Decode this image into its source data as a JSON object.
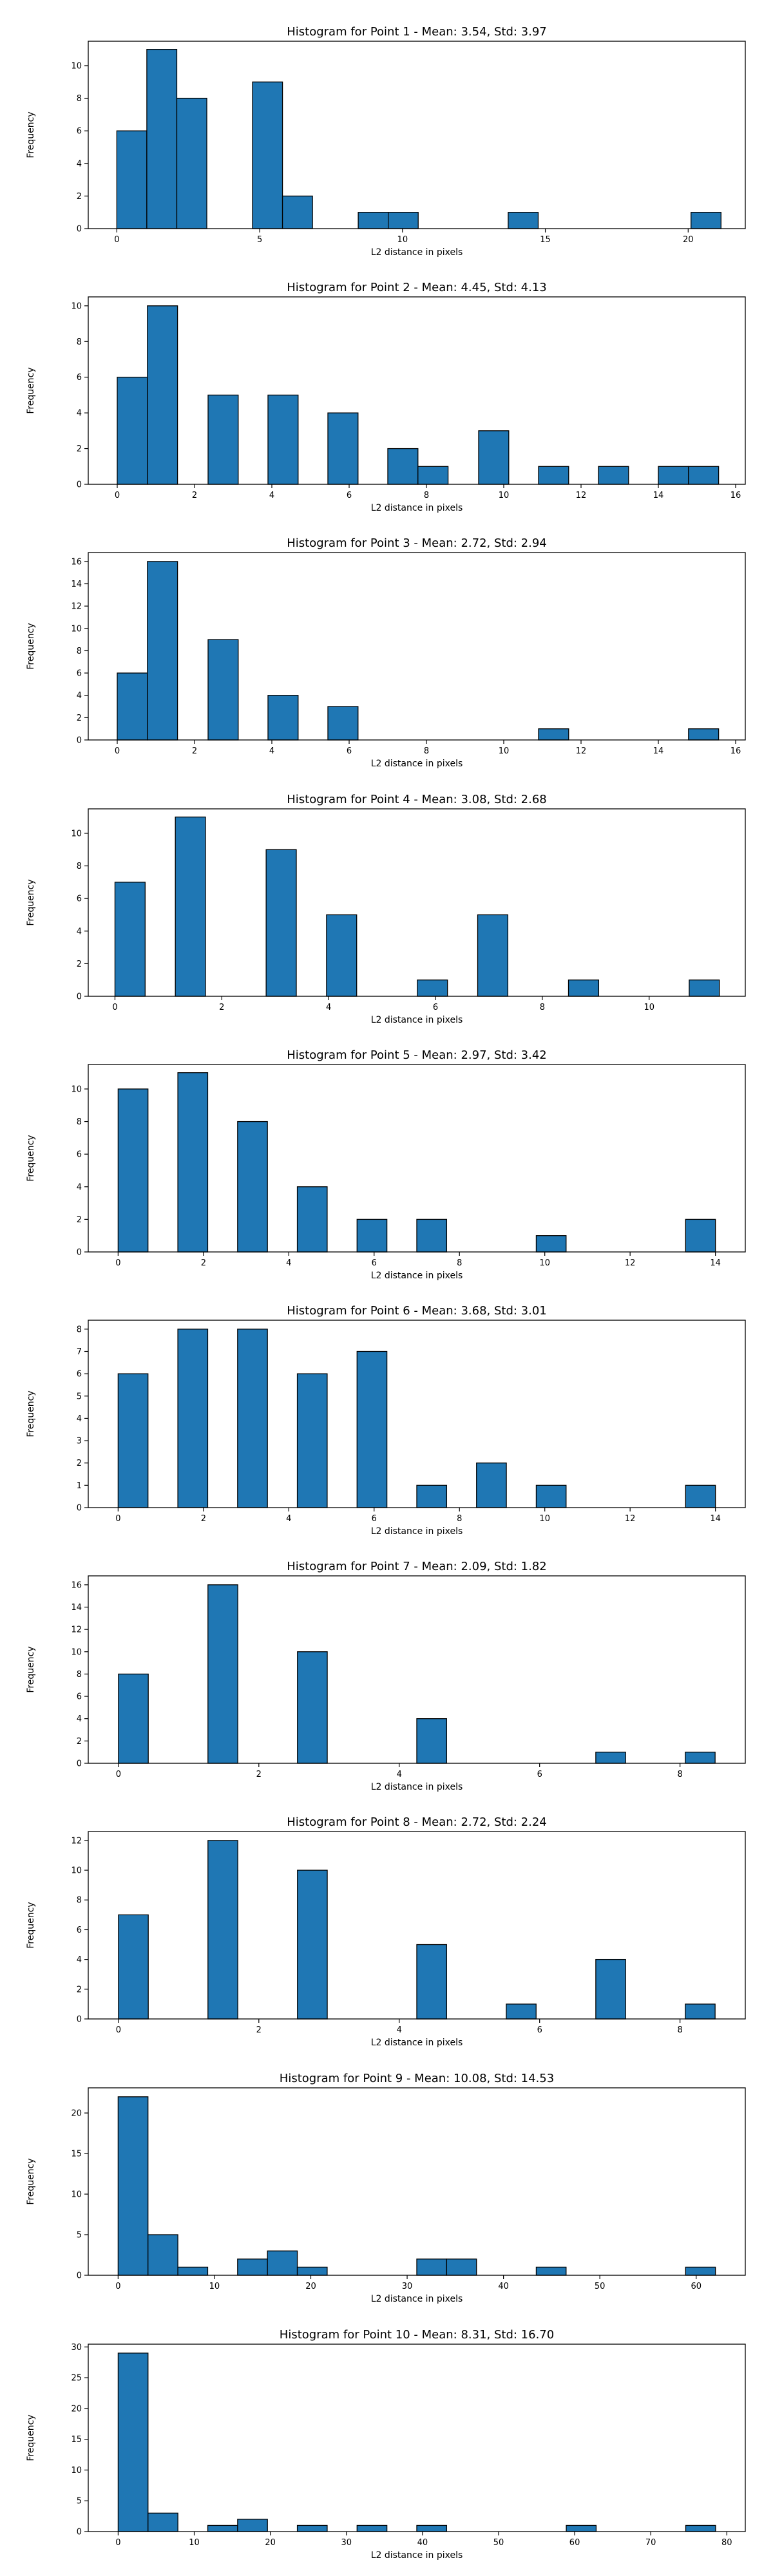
{
  "chart_data": [
    {
      "type": "bar",
      "title": "Histogram for Point 1 - Mean: 3.54, Std: 3.97",
      "xlabel": "L2 distance in pixels",
      "ylabel": "Frequency",
      "xlim": [
        -1,
        22
      ],
      "ylim": [
        0,
        11.5
      ],
      "xticks": [
        "0",
        "5",
        "10",
        "15",
        "20"
      ],
      "yticks": [
        "0",
        "2",
        "4",
        "6",
        "8",
        "10"
      ],
      "bin_width": 1.05,
      "bins": [
        {
          "x": 0,
          "count": 6
        },
        {
          "x": 1.05,
          "count": 11
        },
        {
          "x": 2.1,
          "count": 8
        },
        {
          "x": 4.75,
          "count": 9
        },
        {
          "x": 5.8,
          "count": 2
        },
        {
          "x": 8.45,
          "count": 1
        },
        {
          "x": 9.5,
          "count": 1
        },
        {
          "x": 13.7,
          "count": 1
        },
        {
          "x": 20.1,
          "count": 1
        }
      ]
    },
    {
      "type": "bar",
      "title": "Histogram for Point 2 - Mean: 4.45, Std: 4.13",
      "xlabel": "L2 distance in pixels",
      "ylabel": "Frequency",
      "xlim": [
        -0.75,
        16.25
      ],
      "ylim": [
        0,
        10.5
      ],
      "xticks": [
        "0",
        "2",
        "4",
        "6",
        "8",
        "10",
        "12",
        "14",
        "16"
      ],
      "yticks": [
        "0",
        "2",
        "4",
        "6",
        "8",
        "10"
      ],
      "bin_width": 0.78,
      "bins": [
        {
          "x": 0,
          "count": 6
        },
        {
          "x": 0.78,
          "count": 10
        },
        {
          "x": 2.35,
          "count": 5
        },
        {
          "x": 3.9,
          "count": 5
        },
        {
          "x": 5.45,
          "count": 4
        },
        {
          "x": 7,
          "count": 2
        },
        {
          "x": 7.78,
          "count": 1
        },
        {
          "x": 9.35,
          "count": 3
        },
        {
          "x": 10.9,
          "count": 1
        },
        {
          "x": 12.45,
          "count": 1
        },
        {
          "x": 14,
          "count": 1
        },
        {
          "x": 14.78,
          "count": 1
        }
      ]
    },
    {
      "type": "bar",
      "title": "Histogram for Point 3 - Mean: 2.72, Std: 2.94",
      "xlabel": "L2 distance in pixels",
      "ylabel": "Frequency",
      "xlim": [
        -0.75,
        16.25
      ],
      "ylim": [
        0,
        16.8
      ],
      "xticks": [
        "0",
        "2",
        "4",
        "6",
        "8",
        "10",
        "12",
        "14",
        "16"
      ],
      "yticks": [
        "0",
        "2",
        "4",
        "6",
        "8",
        "10",
        "12",
        "14",
        "16"
      ],
      "bin_width": 0.78,
      "bins": [
        {
          "x": 0,
          "count": 6
        },
        {
          "x": 0.78,
          "count": 16
        },
        {
          "x": 2.35,
          "count": 9
        },
        {
          "x": 3.9,
          "count": 4
        },
        {
          "x": 5.45,
          "count": 3
        },
        {
          "x": 10.9,
          "count": 1
        },
        {
          "x": 14.78,
          "count": 1
        }
      ]
    },
    {
      "type": "bar",
      "title": "Histogram for Point 4 - Mean: 3.08, Std: 2.68",
      "xlabel": "L2 distance in pixels",
      "ylabel": "Frequency",
      "xlim": [
        -0.5,
        11.8
      ],
      "ylim": [
        0,
        11.5
      ],
      "xticks": [
        "0",
        "2",
        "4",
        "6",
        "8",
        "10"
      ],
      "yticks": [
        "0",
        "2",
        "4",
        "6",
        "8",
        "10"
      ],
      "bin_width": 0.565,
      "bins": [
        {
          "x": 0,
          "count": 7
        },
        {
          "x": 1.13,
          "count": 11
        },
        {
          "x": 2.83,
          "count": 9
        },
        {
          "x": 3.96,
          "count": 5
        },
        {
          "x": 5.66,
          "count": 1
        },
        {
          "x": 6.79,
          "count": 5
        },
        {
          "x": 8.49,
          "count": 1
        },
        {
          "x": 10.75,
          "count": 1
        }
      ]
    },
    {
      "type": "bar",
      "title": "Histogram for Point 5 - Mean: 2.97, Std: 3.42",
      "xlabel": "L2 distance in pixels",
      "ylabel": "Frequency",
      "xlim": [
        -0.7,
        14.7
      ],
      "ylim": [
        0,
        11.5
      ],
      "xticks": [
        "0",
        "2",
        "4",
        "6",
        "8",
        "10",
        "12",
        "14"
      ],
      "yticks": [
        "0",
        "2",
        "4",
        "6",
        "8",
        "10"
      ],
      "bin_width": 0.7,
      "bins": [
        {
          "x": 0,
          "count": 10
        },
        {
          "x": 1.4,
          "count": 11
        },
        {
          "x": 2.8,
          "count": 8
        },
        {
          "x": 4.2,
          "count": 4
        },
        {
          "x": 5.6,
          "count": 2
        },
        {
          "x": 7,
          "count": 2
        },
        {
          "x": 9.8,
          "count": 1
        },
        {
          "x": 13.3,
          "count": 2
        }
      ]
    },
    {
      "type": "bar",
      "title": "Histogram for Point 6 - Mean: 3.68, Std: 3.01",
      "xlabel": "L2 distance in pixels",
      "ylabel": "Frequency",
      "xlim": [
        -0.7,
        14.7
      ],
      "ylim": [
        0,
        8.4
      ],
      "xticks": [
        "0",
        "2",
        "4",
        "6",
        "8",
        "10",
        "12",
        "14"
      ],
      "yticks": [
        "0",
        "1",
        "2",
        "3",
        "4",
        "5",
        "6",
        "7",
        "8"
      ],
      "bin_width": 0.7,
      "bins": [
        {
          "x": 0,
          "count": 6
        },
        {
          "x": 1.4,
          "count": 8
        },
        {
          "x": 2.8,
          "count": 8
        },
        {
          "x": 4.2,
          "count": 6
        },
        {
          "x": 5.6,
          "count": 7
        },
        {
          "x": 7,
          "count": 1
        },
        {
          "x": 8.4,
          "count": 2
        },
        {
          "x": 9.8,
          "count": 1
        },
        {
          "x": 13.3,
          "count": 1
        }
      ]
    },
    {
      "type": "bar",
      "title": "Histogram for Point 7 - Mean: 2.09, Std: 1.82",
      "xlabel": "L2 distance in pixels",
      "ylabel": "Frequency",
      "xlim": [
        -0.43,
        8.93
      ],
      "ylim": [
        0,
        16.8
      ],
      "xticks": [
        "0",
        "2",
        "4",
        "6",
        "8"
      ],
      "yticks": [
        "0",
        "2",
        "4",
        "6",
        "8",
        "10",
        "12",
        "14",
        "16"
      ],
      "bin_width": 0.425,
      "bins": [
        {
          "x": 0,
          "count": 8
        },
        {
          "x": 1.275,
          "count": 16
        },
        {
          "x": 2.55,
          "count": 10
        },
        {
          "x": 4.25,
          "count": 4
        },
        {
          "x": 6.8,
          "count": 1
        },
        {
          "x": 8.075,
          "count": 1
        }
      ]
    },
    {
      "type": "bar",
      "title": "Histogram for Point 8 - Mean: 2.72, Std: 2.24",
      "xlabel": "L2 distance in pixels",
      "ylabel": "Frequency",
      "xlim": [
        -0.43,
        8.93
      ],
      "ylim": [
        0,
        12.6
      ],
      "xticks": [
        "0",
        "2",
        "4",
        "6",
        "8"
      ],
      "yticks": [
        "0",
        "2",
        "4",
        "6",
        "8",
        "10",
        "12"
      ],
      "bin_width": 0.425,
      "bins": [
        {
          "x": 0,
          "count": 7
        },
        {
          "x": 1.275,
          "count": 12
        },
        {
          "x": 2.55,
          "count": 10
        },
        {
          "x": 4.25,
          "count": 5
        },
        {
          "x": 5.525,
          "count": 1
        },
        {
          "x": 6.8,
          "count": 4
        },
        {
          "x": 8.075,
          "count": 1
        }
      ]
    },
    {
      "type": "bar",
      "title": "Histogram for Point 9 - Mean: 10.08, Std: 14.53",
      "xlabel": "L2 distance in pixels",
      "ylabel": "Frequency",
      "xlim": [
        -3.1,
        65.1
      ],
      "ylim": [
        0,
        23.1
      ],
      "xticks": [
        "0",
        "10",
        "20",
        "30",
        "40",
        "50",
        "60"
      ],
      "yticks": [
        "0",
        "5",
        "10",
        "15",
        "20"
      ],
      "bin_width": 3.1,
      "bins": [
        {
          "x": 0,
          "count": 22
        },
        {
          "x": 3.1,
          "count": 5
        },
        {
          "x": 6.2,
          "count": 1
        },
        {
          "x": 12.4,
          "count": 2
        },
        {
          "x": 15.5,
          "count": 3
        },
        {
          "x": 18.6,
          "count": 1
        },
        {
          "x": 31,
          "count": 2
        },
        {
          "x": 34.1,
          "count": 2
        },
        {
          "x": 43.4,
          "count": 1
        },
        {
          "x": 58.9,
          "count": 1
        }
      ]
    },
    {
      "type": "bar",
      "title": "Histogram for Point 10 - Mean: 8.31, Std: 16.70",
      "xlabel": "L2 distance in pixels",
      "ylabel": "Frequency",
      "xlim": [
        -3.93,
        82.43
      ],
      "ylim": [
        0,
        30.45
      ],
      "xticks": [
        "0",
        "10",
        "20",
        "30",
        "40",
        "50",
        "60",
        "70",
        "80"
      ],
      "yticks": [
        "0",
        "5",
        "10",
        "15",
        "20",
        "25",
        "30"
      ],
      "bin_width": 3.925,
      "bins": [
        {
          "x": 0,
          "count": 29
        },
        {
          "x": 3.925,
          "count": 3
        },
        {
          "x": 11.78,
          "count": 1
        },
        {
          "x": 15.7,
          "count": 2
        },
        {
          "x": 23.55,
          "count": 1
        },
        {
          "x": 31.4,
          "count": 1
        },
        {
          "x": 39.25,
          "count": 1
        },
        {
          "x": 58.9,
          "count": 1
        },
        {
          "x": 74.6,
          "count": 1
        }
      ]
    }
  ]
}
